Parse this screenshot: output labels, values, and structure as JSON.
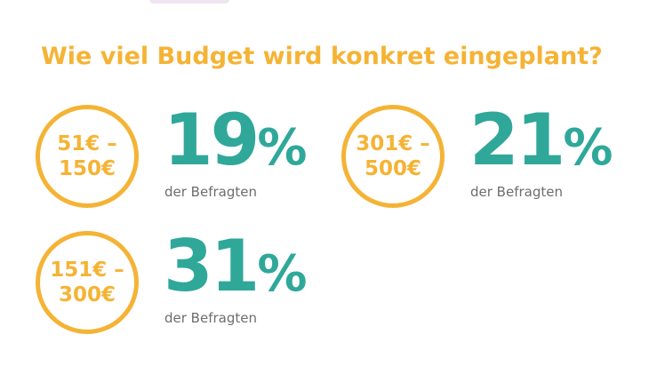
{
  "title": "Wie viel Budget wird konkret eingeplant?",
  "colors": {
    "accent_orange": "#f5b335",
    "accent_teal": "#2fa89a",
    "muted_text": "#6d6d6d"
  },
  "chart_data": {
    "type": "table",
    "title": "Wie viel Budget wird konkret eingeplant?",
    "unit_label": "der Befragten",
    "items": [
      {
        "range_line1": "51€ –",
        "range_line2": "150€",
        "value": 19,
        "value_label": "19",
        "percent_sign": "%",
        "caption": "der Befragten"
      },
      {
        "range_line1": "301€ –",
        "range_line2": "500€",
        "value": 21,
        "value_label": "21",
        "percent_sign": "%",
        "caption": "der Befragten"
      },
      {
        "range_line1": "151€ –",
        "range_line2": "300€",
        "value": 31,
        "value_label": "31",
        "percent_sign": "%",
        "caption": "der Befragten"
      }
    ]
  }
}
